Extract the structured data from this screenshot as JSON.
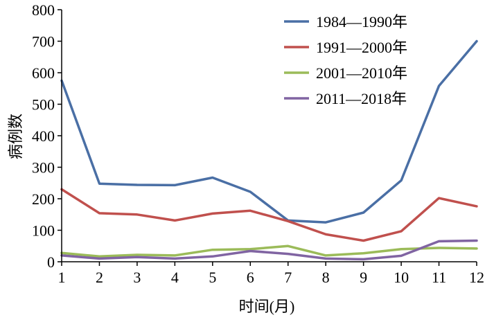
{
  "chart_data": {
    "type": "line",
    "xlabel": "时间(月)",
    "ylabel": "病例数",
    "x": [
      1,
      2,
      3,
      4,
      5,
      6,
      7,
      8,
      9,
      10,
      11,
      12
    ],
    "xlim": [
      1,
      12
    ],
    "ylim": [
      0,
      800
    ],
    "yticks": [
      0,
      100,
      200,
      300,
      400,
      500,
      600,
      700,
      800
    ],
    "grid": false,
    "legend_position": "top-right",
    "series": [
      {
        "name": "1984—1990年",
        "color": "#4a6fa5",
        "values": [
          575,
          248,
          244,
          243,
          267,
          222,
          131,
          125,
          156,
          258,
          558,
          700
        ]
      },
      {
        "name": "1991—2000年",
        "color": "#c0504d",
        "values": [
          230,
          154,
          150,
          131,
          153,
          162,
          129,
          87,
          67,
          97,
          202,
          176
        ]
      },
      {
        "name": "2001—2010年",
        "color": "#9bbb59",
        "values": [
          28,
          17,
          22,
          20,
          38,
          40,
          50,
          20,
          27,
          40,
          44,
          42
        ]
      },
      {
        "name": "2011—2018年",
        "color": "#8064a2",
        "values": [
          20,
          10,
          15,
          10,
          17,
          34,
          25,
          10,
          8,
          19,
          65,
          67
        ]
      }
    ]
  }
}
